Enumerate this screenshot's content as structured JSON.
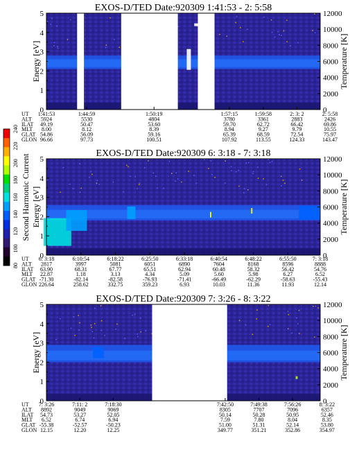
{
  "chart_data": {
    "type": "heatmap",
    "colorbar": {
      "label": "Second Harmonic Current",
      "ticks": [
        "240",
        "220",
        "200",
        "180",
        "160",
        "140",
        "120",
        "100",
        "80"
      ],
      "colors": [
        "#f00000",
        "#ff6000",
        "#ffb000",
        "#ffff00",
        "#b0ff00",
        "#00e000",
        "#00d080",
        "#00e0e0",
        "#00a0ff",
        "#0060ff",
        "#0030e0",
        "#2020b0",
        "#301870",
        "#200030",
        "#000000"
      ]
    },
    "panels": [
      {
        "title": "EXOS-D/TED   Date:920309  1:41:53 - 2: 5:58",
        "ylabel": "Energy [eV]",
        "y2label": "Temperature [K]",
        "ylim": [
          0,
          5
        ],
        "y2lim": [
          0,
          12000
        ],
        "yticks": [
          "0",
          "1",
          "2",
          "3",
          "4",
          "5"
        ],
        "y2ticks": [
          "0",
          "2000",
          "4000",
          "6000",
          "8000",
          "10000",
          "12000"
        ],
        "gaps": [
          [
            0.112,
            0.137
          ],
          [
            0.273,
            0.48
          ],
          [
            0.553,
            0.614
          ]
        ],
        "band": [
          2.1,
          2.8
        ],
        "hotspots": [
          {
            "x": 0.52,
            "e": 2.6,
            "c": "#ffffff",
            "w": 6,
            "h": 30
          },
          {
            "x": 0.581,
            "e": 2.6,
            "c": "#00e0e0",
            "w": 6,
            "h": 7
          },
          {
            "x": 0.581,
            "e": 0.9,
            "c": "#00e0e0",
            "w": 6,
            "h": 7
          },
          {
            "x": 0.55,
            "e": 4.4,
            "c": "#ffffff",
            "w": 8,
            "h": 4
          }
        ],
        "table": {
          "labels": [
            "UT",
            "ALT",
            "ILAT",
            "MLT",
            "GLAT",
            "GLON"
          ],
          "columns": [
            {
              "x": 0.0,
              "v": [
                "1:41:53",
                "5924",
                "49.19",
                "8.00",
                "54.86",
                "96.66"
              ]
            },
            {
              "x": 0.147,
              "v": [
                "1:44:59",
                "5530",
                "50.47",
                "8.12",
                "56.09",
                "97.73"
              ]
            },
            {
              "x": 0.393,
              "v": [
                "1:50:19",
                "4804",
                "53.60",
                "8.39",
                "59.16",
                "100.51"
              ]
            },
            {
              "x": 0.668,
              "v": [
                "1:57:15",
                "3780",
                "59.70",
                "8.94",
                "65.39",
                "107.92"
              ]
            },
            {
              "x": 0.792,
              "v": [
                "1:59:58",
                "3361",
                "62.72",
                "9.27",
                "68.59",
                "113.55"
              ]
            },
            {
              "x": 0.915,
              "v": [
                "2: 3: 2",
                "2883",
                "66.42",
                "9.79",
                "72.54",
                "124.33"
              ]
            },
            {
              "x": 1.04,
              "v": [
                "2: 5:58",
                "2426",
                "69.86",
                "10.55",
                "75.97",
                "143.47"
              ]
            }
          ]
        }
      },
      {
        "title": "EXOS-D/TED   Date:920309  6: 3:18 - 7: 3:18",
        "ylabel": "Energy [eV]",
        "y2label": "Temperature [K]",
        "ylim": [
          0,
          5
        ],
        "y2lim": [
          0,
          12000
        ],
        "yticks": [
          "0",
          "1",
          "2",
          "3",
          "4",
          "5"
        ],
        "y2ticks": [
          "0",
          "2000",
          "4000",
          "6000",
          "8000",
          "10000",
          "12000"
        ],
        "gaps": [],
        "band": [
          1.8,
          2.6
        ],
        "hotspots": [
          {
            "x": 0.04,
            "e": 1.2,
            "c": "#00e0e0",
            "w": 40,
            "h": 40
          },
          {
            "x": 0.11,
            "e": 1.8,
            "c": "#00a0ff",
            "w": 30,
            "h": 30
          },
          {
            "x": 0.31,
            "e": 2.2,
            "c": "#00a0ff",
            "w": 12,
            "h": 18
          },
          {
            "x": 0.6,
            "e": 2.1,
            "c": "#ffff00",
            "w": 2,
            "h": 8
          },
          {
            "x": 0.75,
            "e": 2.3,
            "c": "#ffff00",
            "w": 2,
            "h": 8
          },
          {
            "x": 0.96,
            "e": 2.2,
            "c": "#0060ff",
            "w": 30,
            "h": 20
          }
        ],
        "table": {
          "labels": [
            "UT",
            "ALT",
            "ILAT",
            "MLT",
            "GLAT",
            "GLON"
          ],
          "columns": [
            {
              "x": 0.0,
              "v": [
                "6: 3:18",
                "2817",
                "63.90",
                "22.87",
                "-71.30",
                "226.64"
              ]
            },
            {
              "x": 0.126,
              "v": [
                "6:10:54",
                "3997",
                "68.31",
                "1.18",
                "-82.14",
                "258.62"
              ]
            },
            {
              "x": 0.252,
              "v": [
                "6:18:22",
                "5081",
                "67.77",
                "3.13",
                "-82.58",
                "332.75"
              ]
            },
            {
              "x": 0.378,
              "v": [
                "6:25:50",
                "6051",
                "65.51",
                "4.34",
                "-76.93",
                "359.23"
              ]
            },
            {
              "x": 0.504,
              "v": [
                "6:33:18",
                "6890",
                "62.94",
                "5.09",
                "-71.41",
                "6.93"
              ]
            },
            {
              "x": 0.63,
              "v": [
                "6:40:54",
                "7604",
                "60.48",
                "5.60",
                "-66.49",
                "10.03"
              ]
            },
            {
              "x": 0.756,
              "v": [
                "6:48:22",
                "8168",
                "58.32",
                "5.98",
                "-62.29",
                "11.36"
              ]
            },
            {
              "x": 0.882,
              "v": [
                "6:55:50",
                "8596",
                "56.42",
                "6.27",
                "-58.63",
                "11.93"
              ]
            },
            {
              "x": 1.0,
              "v": [
                "7: 3:18",
                "8888",
                "54.76",
                "6.52",
                "-55.43",
                "12.14"
              ]
            }
          ]
        }
      },
      {
        "title": "EXOS-D/TED   Date:920309  7: 3:26 - 8: 3:22",
        "ylabel": "Energy [eV]",
        "y2label": "Temperature [K]",
        "ylim": [
          0,
          5
        ],
        "y2lim": [
          0,
          12000
        ],
        "yticks": [
          "0",
          "1",
          "2",
          "3",
          "4",
          "5"
        ],
        "y2ticks": [
          "0",
          "2000",
          "4000",
          "6000",
          "8000",
          "10000",
          "12000"
        ],
        "gaps": [
          [
            0.386,
            0.66
          ]
        ],
        "band": [
          2.0,
          2.9
        ],
        "hotspots": [
          {
            "x": 0.19,
            "e": 2.5,
            "c": "#0060ff",
            "w": 16,
            "h": 16
          },
          {
            "x": 0.914,
            "e": 1.2,
            "c": "#b0ff00",
            "w": 3,
            "h": 4
          }
        ],
        "table": {
          "labels": [
            "UT",
            "ALT",
            "ILAT",
            "MLT",
            "GLAT",
            "GLON"
          ],
          "columns": [
            {
              "x": 0.0,
              "v": [
                "7: 3:26",
                "8892",
                "54.73",
                "6.52",
                "-55.38",
                "12.15"
              ]
            },
            {
              "x": 0.122,
              "v": [
                "7:11: 2",
                "9049",
                "53.27",
                "6.74",
                "-52.57",
                "12.20"
              ]
            },
            {
              "x": 0.244,
              "v": [
                "7:18:30",
                "9069",
                "52.05",
                "6.94",
                "-50.23",
                "12.25"
              ]
            },
            {
              "x": 0.653,
              "v": [
                "7:42:50",
                "8305",
                "50.14",
                "7.59",
                "51.00",
                "349.77"
              ]
            },
            {
              "x": 0.776,
              "v": [
                "7:49:38",
                "7707",
                "50.28",
                "7.80",
                "51.31",
                "351.21"
              ]
            },
            {
              "x": 0.899,
              "v": [
                "7:56:26",
                "7096",
                "50.95",
                "8.04",
                "52.14",
                "352.86"
              ]
            },
            {
              "x": 1.025,
              "v": [
                "8: 3:22",
                "6357",
                "52.46",
                "8.35",
                "53.80",
                "354.97"
              ]
            }
          ]
        }
      }
    ]
  }
}
